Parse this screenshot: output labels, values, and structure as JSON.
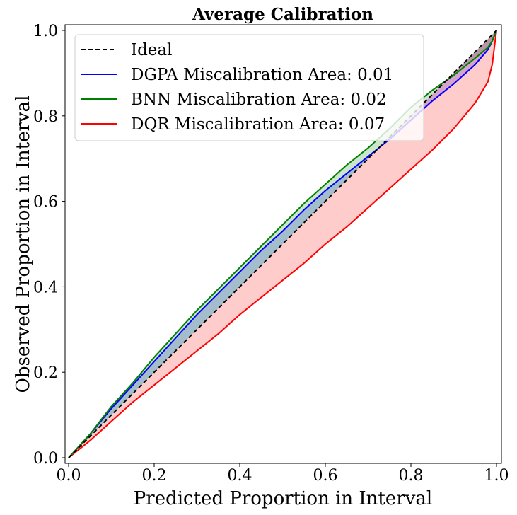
{
  "chart_data": {
    "type": "line",
    "title": "Average Calibration",
    "xlabel": "Predicted Proportion in Interval",
    "ylabel": "Observed Proportion in Interval",
    "xlim": [
      0,
      1
    ],
    "ylim": [
      0,
      1
    ],
    "xticks": [
      0.0,
      0.2,
      0.4,
      0.6,
      0.8,
      1.0
    ],
    "yticks": [
      0.0,
      0.2,
      0.4,
      0.6,
      0.8,
      1.0
    ],
    "xtick_labels": [
      "0.0",
      "0.2",
      "0.4",
      "0.6",
      "0.8",
      "1.0"
    ],
    "ytick_labels": [
      "0.0",
      "0.2",
      "0.4",
      "0.6",
      "0.8",
      "1.0"
    ],
    "grid": false,
    "legend_position": "top-left",
    "x": [
      0.0,
      0.05,
      0.1,
      0.15,
      0.2,
      0.25,
      0.3,
      0.35,
      0.4,
      0.45,
      0.5,
      0.55,
      0.6,
      0.65,
      0.7,
      0.75,
      0.8,
      0.85,
      0.9,
      0.95,
      0.98,
      0.99,
      1.0
    ],
    "series": [
      {
        "name": "Ideal",
        "label": "Ideal",
        "color": "#000000",
        "style": "dashed",
        "values": [
          0.0,
          0.05,
          0.1,
          0.15,
          0.2,
          0.25,
          0.3,
          0.35,
          0.4,
          0.45,
          0.5,
          0.55,
          0.6,
          0.65,
          0.7,
          0.75,
          0.8,
          0.85,
          0.9,
          0.95,
          0.98,
          0.99,
          1.0
        ]
      },
      {
        "name": "DGPA",
        "label": "DGPA Miscalibration Area: 0.01",
        "color": "#0000ff",
        "style": "solid",
        "fill": "#0000ff",
        "values": [
          0.0,
          0.055,
          0.115,
          0.17,
          0.225,
          0.28,
          0.335,
          0.385,
          0.435,
          0.485,
          0.53,
          0.58,
          0.625,
          0.665,
          0.705,
          0.745,
          0.79,
          0.835,
          0.875,
          0.92,
          0.955,
          0.975,
          1.0
        ]
      },
      {
        "name": "BNN",
        "label": "BNN Miscalibration Area: 0.02",
        "color": "#008000",
        "style": "solid",
        "fill": "#008000",
        "values": [
          0.0,
          0.055,
          0.12,
          0.175,
          0.235,
          0.29,
          0.345,
          0.395,
          0.445,
          0.495,
          0.545,
          0.595,
          0.64,
          0.685,
          0.725,
          0.77,
          0.82,
          0.86,
          0.895,
          0.935,
          0.96,
          0.975,
          1.0
        ]
      },
      {
        "name": "DQR",
        "label": "DQR Miscalibration Area: 0.07",
        "color": "#ff0000",
        "style": "solid",
        "fill": "#ff0000",
        "values": [
          0.0,
          0.04,
          0.085,
          0.13,
          0.17,
          0.21,
          0.25,
          0.29,
          0.335,
          0.375,
          0.415,
          0.455,
          0.5,
          0.54,
          0.585,
          0.63,
          0.675,
          0.72,
          0.77,
          0.83,
          0.88,
          0.92,
          1.0
        ]
      }
    ]
  }
}
